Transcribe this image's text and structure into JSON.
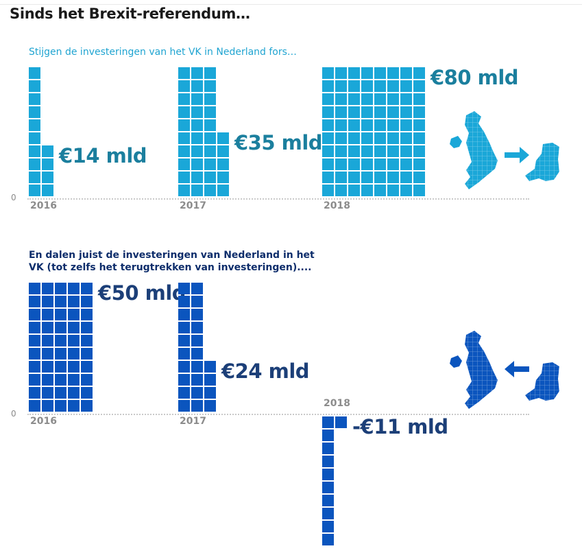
{
  "title": "Sinds het Brexit-referendum…",
  "colors": {
    "section1": "#1aa7d8",
    "section2": "#0b55be",
    "text1": "#1b7f9e",
    "text2": "#1c3f78"
  },
  "chart_data": [
    {
      "type": "bar",
      "title": "Stijgen de investeringen van het VK in Nederland fors…",
      "unit": "€ mld",
      "categories": [
        "2016",
        "2017",
        "2018"
      ],
      "values": [
        14,
        35,
        80
      ],
      "value_labels": [
        "€14 mld",
        "€35 mld",
        "€80 mld"
      ],
      "zero_label": "0",
      "icon": "uk-to-netherlands-arrow"
    },
    {
      "type": "bar",
      "title": "En dalen juist de investeringen van Nederland in het VK (tot zelfs het terugtrekken van investeringen)....",
      "unit": "€ mld",
      "categories": [
        "2016",
        "2017",
        "2018"
      ],
      "values": [
        50,
        24,
        -11
      ],
      "value_labels": [
        "€50 mld",
        "€24 mld",
        "-€11 mld"
      ],
      "zero_label": "0",
      "icon": "netherlands-to-uk-arrow"
    }
  ]
}
